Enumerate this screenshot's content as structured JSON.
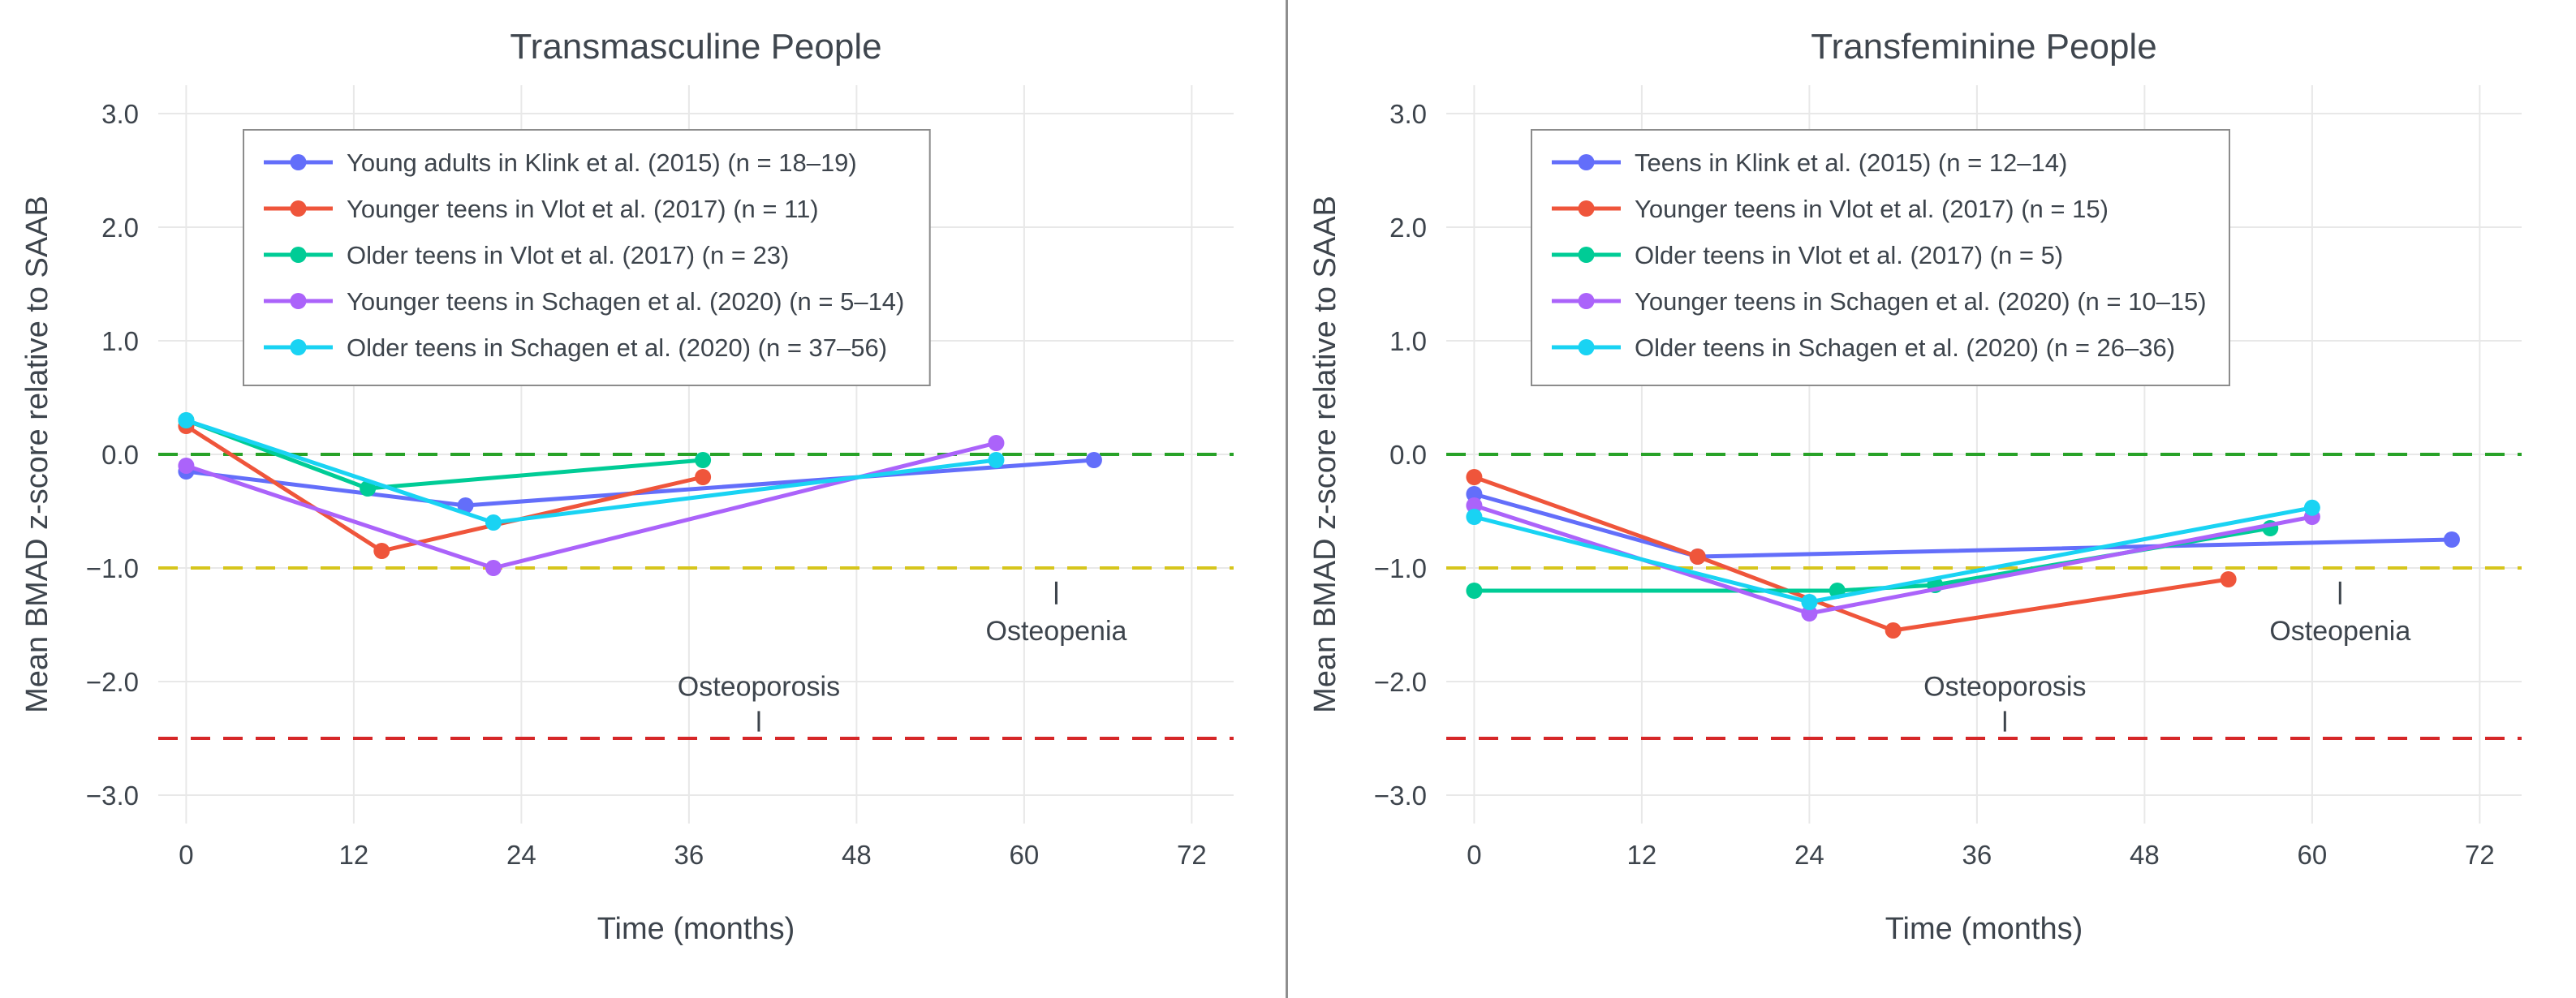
{
  "page": {
    "background": "#ffffff",
    "divider_color": "#8f8f8f",
    "text_color": "#3d444c",
    "title_color": "#3f464e"
  },
  "chart_data": [
    {
      "type": "line",
      "title": "Transmasculine People",
      "xlabel": "Time (months)",
      "ylabel": "Mean BMAD z-score relative to SAAB",
      "xlim": [
        -2,
        75
      ],
      "ylim": [
        -3.25,
        3.25
      ],
      "grid": true,
      "legend_position": "top-left",
      "xticks": [
        {
          "v": 0,
          "label": "0"
        },
        {
          "v": 12,
          "label": "12"
        },
        {
          "v": 24,
          "label": "24"
        },
        {
          "v": 36,
          "label": "36"
        },
        {
          "v": 48,
          "label": "48"
        },
        {
          "v": 60,
          "label": "60"
        },
        {
          "v": 72,
          "label": "72"
        }
      ],
      "yticks": [
        {
          "v": 3,
          "label": "3.0"
        },
        {
          "v": 2,
          "label": "2.0"
        },
        {
          "v": 1,
          "label": "1.0"
        },
        {
          "v": 0,
          "label": "0.0"
        },
        {
          "v": -1,
          "label": "−1.0"
        },
        {
          "v": -2,
          "label": "−2.0"
        },
        {
          "v": -3,
          "label": "−3.0"
        }
      ],
      "reference_lines": [
        {
          "label": "normal-line",
          "y": 0,
          "color": "#28a228"
        },
        {
          "label": "osteopenia-threshold",
          "y": -1,
          "color": "#d6c51c"
        },
        {
          "label": "osteoporosis-threshold",
          "y": -2.5,
          "color": "#d62728"
        }
      ],
      "annotations": [
        {
          "text": "Osteopenia",
          "x": 62.3,
          "y": -1.55,
          "tick_x": 62.3,
          "tick_y1": -1.12,
          "tick_y2": -1.32
        },
        {
          "text": "Osteoporosis",
          "x": 41,
          "y": -2.04,
          "tick_x": 41,
          "tick_y1": -2.26,
          "tick_y2": -2.44
        }
      ],
      "series": [
        {
          "name": "Young adults in Klink et al. (2015) (n = 18–19)",
          "color": "#636EFA",
          "points": [
            [
              0,
              -0.15
            ],
            [
              20,
              -0.45
            ],
            [
              65,
              -0.05
            ]
          ]
        },
        {
          "name": "Younger teens in Vlot et al. (2017) (n = 11)",
          "color": "#EF553B",
          "points": [
            [
              0,
              0.25
            ],
            [
              14,
              -0.85
            ],
            [
              37,
              -0.2
            ]
          ]
        },
        {
          "name": "Older teens in Vlot et al. (2017) (n = 23)",
          "color": "#00CC96",
          "points": [
            [
              0,
              0.3
            ],
            [
              13,
              -0.3
            ],
            [
              37,
              -0.05
            ]
          ]
        },
        {
          "name": "Younger teens in Schagen et al. (2020) (n = 5–14)",
          "color": "#AB63FA",
          "points": [
            [
              0,
              -0.1
            ],
            [
              22,
              -1.0
            ],
            [
              58,
              0.1
            ]
          ]
        },
        {
          "name": "Older teens in Schagen et al. (2020) (n = 37–56)",
          "color": "#19D3F3",
          "points": [
            [
              0,
              0.3
            ],
            [
              22,
              -0.6
            ],
            [
              58,
              -0.05
            ]
          ]
        }
      ]
    },
    {
      "type": "line",
      "title": "Transfeminine People",
      "xlabel": "Time (months)",
      "ylabel": "Mean BMAD z-score relative to SAAB",
      "xlim": [
        -2,
        75
      ],
      "ylim": [
        -3.25,
        3.25
      ],
      "grid": true,
      "legend_position": "top-left",
      "xticks": [
        {
          "v": 0,
          "label": "0"
        },
        {
          "v": 12,
          "label": "12"
        },
        {
          "v": 24,
          "label": "24"
        },
        {
          "v": 36,
          "label": "36"
        },
        {
          "v": 48,
          "label": "48"
        },
        {
          "v": 60,
          "label": "60"
        },
        {
          "v": 72,
          "label": "72"
        }
      ],
      "yticks": [
        {
          "v": 3,
          "label": "3.0"
        },
        {
          "v": 2,
          "label": "2.0"
        },
        {
          "v": 1,
          "label": "1.0"
        },
        {
          "v": 0,
          "label": "0.0"
        },
        {
          "v": -1,
          "label": "−1.0"
        },
        {
          "v": -2,
          "label": "−2.0"
        },
        {
          "v": -3,
          "label": "−3.0"
        }
      ],
      "reference_lines": [
        {
          "label": "normal-line",
          "y": 0,
          "color": "#28a228"
        },
        {
          "label": "osteopenia-threshold",
          "y": -1,
          "color": "#d6c51c"
        },
        {
          "label": "osteoporosis-threshold",
          "y": -2.5,
          "color": "#d62728"
        }
      ],
      "annotations": [
        {
          "text": "Osteopenia",
          "x": 62,
          "y": -1.55,
          "tick_x": 62,
          "tick_y1": -1.12,
          "tick_y2": -1.32
        },
        {
          "text": "Osteoporosis",
          "x": 38,
          "y": -2.04,
          "tick_x": 38,
          "tick_y1": -2.26,
          "tick_y2": -2.44
        }
      ],
      "series": [
        {
          "name": "Teens in Klink et al. (2015) (n = 12–14)",
          "color": "#636EFA",
          "points": [
            [
              0,
              -0.35
            ],
            [
              16,
              -0.9
            ],
            [
              70,
              -0.75
            ]
          ]
        },
        {
          "name": "Younger teens in Vlot et al. (2017) (n = 15)",
          "color": "#EF553B",
          "points": [
            [
              0,
              -0.2
            ],
            [
              16,
              -0.9
            ],
            [
              30,
              -1.55
            ],
            [
              54,
              -1.1
            ]
          ]
        },
        {
          "name": "Older teens in Vlot et al. (2017) (n = 5)",
          "color": "#00CC96",
          "points": [
            [
              0,
              -1.2
            ],
            [
              26,
              -1.2
            ],
            [
              33,
              -1.15
            ],
            [
              57,
              -0.65
            ]
          ]
        },
        {
          "name": "Younger teens in Schagen et al. (2020) (n = 10–15)",
          "color": "#AB63FA",
          "points": [
            [
              0,
              -0.45
            ],
            [
              24,
              -1.4
            ],
            [
              60,
              -0.55
            ]
          ]
        },
        {
          "name": "Older teens in Schagen et al. (2020) (n = 26–36)",
          "color": "#19D3F3",
          "points": [
            [
              0,
              -0.55
            ],
            [
              24,
              -1.3
            ],
            [
              60,
              -0.47
            ]
          ]
        }
      ]
    }
  ]
}
